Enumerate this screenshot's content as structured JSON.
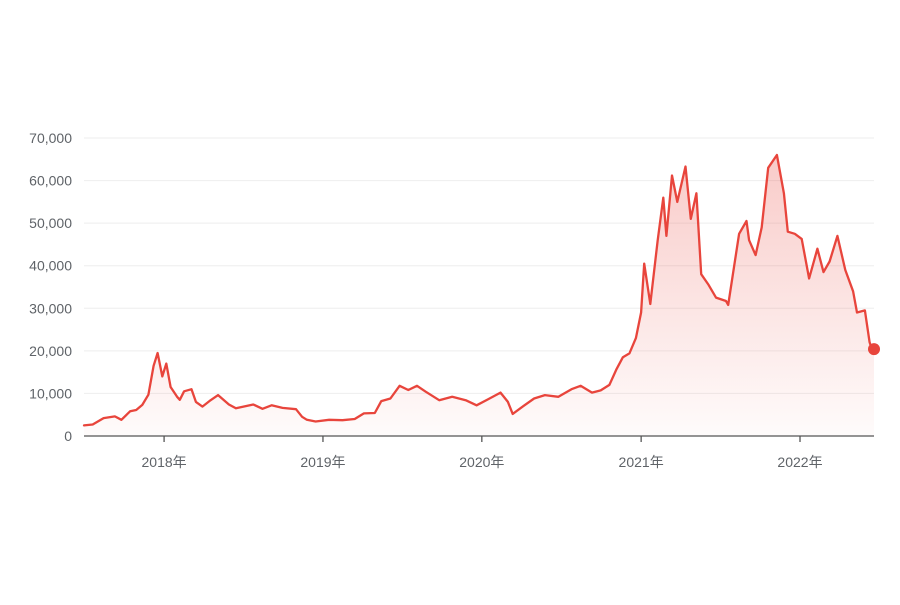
{
  "chart_data": {
    "type": "area",
    "title": "",
    "xlabel": "",
    "ylabel": "",
    "ylim": [
      0,
      70000
    ],
    "y_ticks": [
      0,
      10000,
      20000,
      30000,
      40000,
      50000,
      60000,
      70000
    ],
    "y_tick_labels": [
      "0",
      "10,000",
      "20,000",
      "30,000",
      "40,000",
      "50,000",
      "60,000",
      "70,000"
    ],
    "x_range": [
      "2017-07-01",
      "2022-06-20"
    ],
    "x_ticks": [
      "2018-01-01",
      "2019-01-01",
      "2020-01-01",
      "2021-01-01",
      "2022-01-01"
    ],
    "x_tick_labels": [
      "2018年",
      "2019年",
      "2020年",
      "2021年",
      "2022年"
    ],
    "grid": true,
    "colors": {
      "line": "#e8453c",
      "area_top": "#e8453c",
      "grid": "#eeeeee",
      "axis": "#555555",
      "tick_text": "#5f6368"
    },
    "series": [
      {
        "x": [
          "2017-07-01",
          "2017-07-21",
          "2017-08-15",
          "2017-09-10",
          "2017-09-25",
          "2017-10-15",
          "2017-10-29",
          "2017-11-12",
          "2017-11-26",
          "2017-12-08",
          "2017-12-17",
          "2017-12-28",
          "2018-01-06",
          "2018-01-16",
          "2018-01-31",
          "2018-02-06",
          "2018-02-16",
          "2018-03-05",
          "2018-03-15",
          "2018-03-30",
          "2018-04-15",
          "2018-05-05",
          "2018-05-30",
          "2018-06-15",
          "2018-07-25",
          "2018-08-15",
          "2018-09-05",
          "2018-09-30",
          "2018-10-31",
          "2018-11-14",
          "2018-11-25",
          "2018-12-15",
          "2019-01-15",
          "2019-02-15",
          "2019-03-15",
          "2019-04-05",
          "2019-04-30",
          "2019-05-15",
          "2019-06-05",
          "2019-06-26",
          "2019-07-16",
          "2019-08-05",
          "2019-08-25",
          "2019-09-25",
          "2019-10-25",
          "2019-11-25",
          "2019-12-20",
          "2020-01-15",
          "2020-02-13",
          "2020-03-01",
          "2020-03-12",
          "2020-04-05",
          "2020-04-30",
          "2020-05-25",
          "2020-06-25",
          "2020-07-25",
          "2020-08-15",
          "2020-09-10",
          "2020-09-30",
          "2020-10-20",
          "2020-11-05",
          "2020-11-20",
          "2020-12-05",
          "2020-12-20",
          "2021-01-01",
          "2021-01-08",
          "2021-01-22",
          "2021-02-08",
          "2021-02-21",
          "2021-02-28",
          "2021-03-13",
          "2021-03-25",
          "2021-04-13",
          "2021-04-25",
          "2021-05-08",
          "2021-05-19",
          "2021-06-05",
          "2021-06-22",
          "2021-07-15",
          "2021-07-20",
          "2021-08-14",
          "2021-08-31",
          "2021-09-06",
          "2021-09-21",
          "2021-10-05",
          "2021-10-20",
          "2021-11-09",
          "2021-11-25",
          "2021-12-04",
          "2021-12-20",
          "2022-01-05",
          "2022-01-22",
          "2022-02-10",
          "2022-02-24",
          "2022-03-10",
          "2022-03-28",
          "2022-04-15",
          "2022-05-03",
          "2022-05-12",
          "2022-05-30",
          "2022-06-10",
          "2022-06-18",
          "2022-06-20"
        ],
        "values": [
          2500,
          2700,
          4200,
          4600,
          3800,
          5800,
          6100,
          7300,
          9700,
          16500,
          19500,
          14000,
          17000,
          11500,
          9200,
          8500,
          10500,
          11000,
          8000,
          6900,
          8200,
          9600,
          7400,
          6500,
          7400,
          6400,
          7200,
          6600,
          6300,
          4500,
          3800,
          3400,
          3800,
          3700,
          4000,
          5300,
          5400,
          8200,
          8800,
          11800,
          10800,
          11800,
          10400,
          8400,
          9200,
          8400,
          7200,
          8600,
          10200,
          8000,
          5200,
          7000,
          8800,
          9600,
          9200,
          11000,
          11800,
          10200,
          10700,
          12000,
          15600,
          18500,
          19400,
          23000,
          29000,
          40500,
          31000,
          46000,
          56000,
          47000,
          61200,
          55000,
          63300,
          51000,
          57000,
          38000,
          35500,
          32500,
          31700,
          30800,
          47500,
          50500,
          46000,
          42500,
          49000,
          63000,
          66000,
          57000,
          48000,
          47500,
          46300,
          37000,
          44000,
          38500,
          41000,
          47000,
          39000,
          34000,
          29000,
          29500,
          22000,
          19600,
          20400
        ]
      }
    ]
  }
}
